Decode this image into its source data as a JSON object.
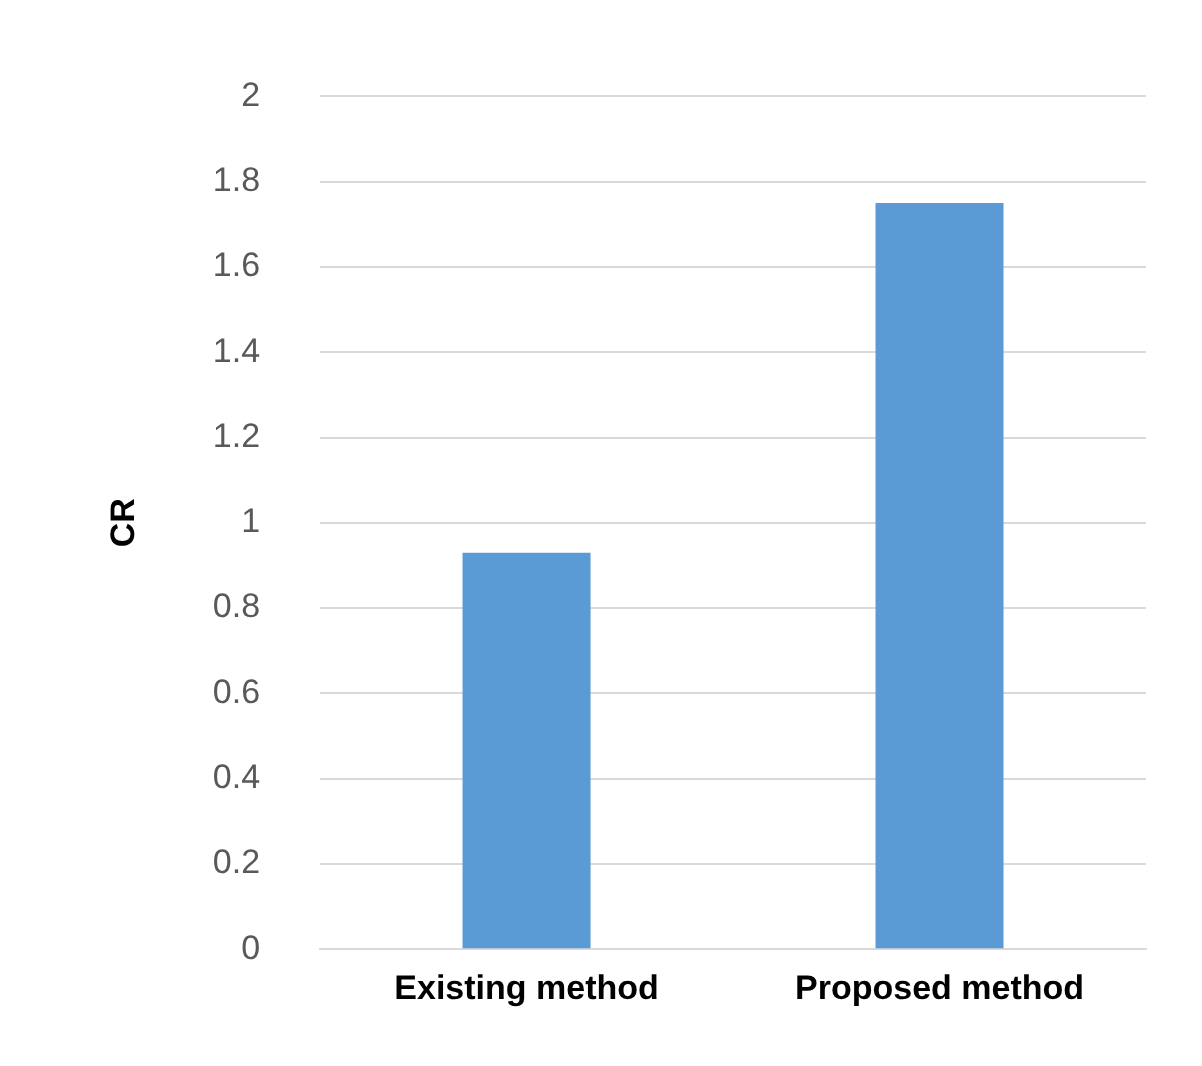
{
  "chart_data": {
    "type": "bar",
    "ylabel": "CR",
    "categories": [
      "Existing method",
      "Proposed method"
    ],
    "values": [
      0.93,
      1.75
    ],
    "color": "#5b9bd5",
    "ylim": [
      0,
      2
    ],
    "yticks": [
      0,
      0.2,
      0.4,
      0.6,
      0.8,
      1,
      1.2,
      1.4,
      1.6,
      1.8,
      2
    ],
    "grid": "y"
  }
}
